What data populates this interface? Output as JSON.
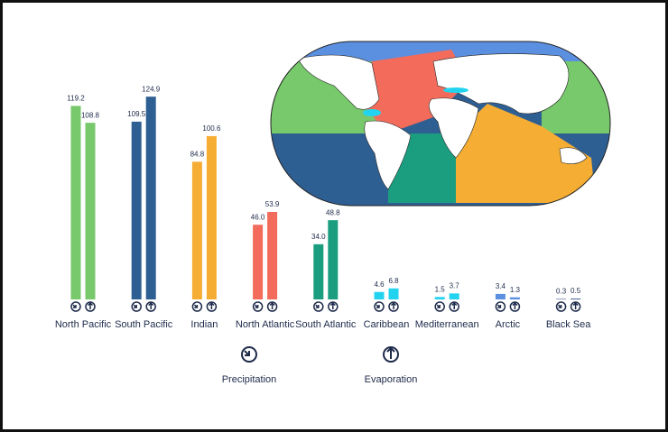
{
  "chart_data": {
    "type": "bar",
    "categories": [
      "North Pacific",
      "South Pacific",
      "Indian",
      "North Atlantic",
      "South Atlantic",
      "Caribbean",
      "Mediterranean",
      "Arctic",
      "Black Sea"
    ],
    "colors": [
      "#77c96b",
      "#2e5f93",
      "#f5ad33",
      "#f26b5b",
      "#1a9e7f",
      "#22d3f0",
      "#22d3f0",
      "#5b8fe0",
      "#2c4f8c"
    ],
    "series": [
      {
        "name": "Precipitation",
        "values": [
          119.2,
          109.5,
          84.8,
          46.0,
          34.0,
          4.6,
          1.5,
          3.4,
          0.3
        ],
        "value_labels": [
          "119.2",
          "109.5",
          "84.8",
          "46.0",
          "34.0",
          "4.6",
          "1.5",
          "3.4",
          "0.3"
        ]
      },
      {
        "name": "Evaporation",
        "values": [
          108.8,
          124.9,
          100.6,
          53.9,
          48.8,
          6.8,
          3.7,
          1.3,
          0.5
        ],
        "value_labels": [
          "108.8",
          "124.9",
          "100.6",
          "53.9",
          "48.8",
          "6.8",
          "3.7",
          "1.3",
          "0.5"
        ]
      }
    ]
  }
}
